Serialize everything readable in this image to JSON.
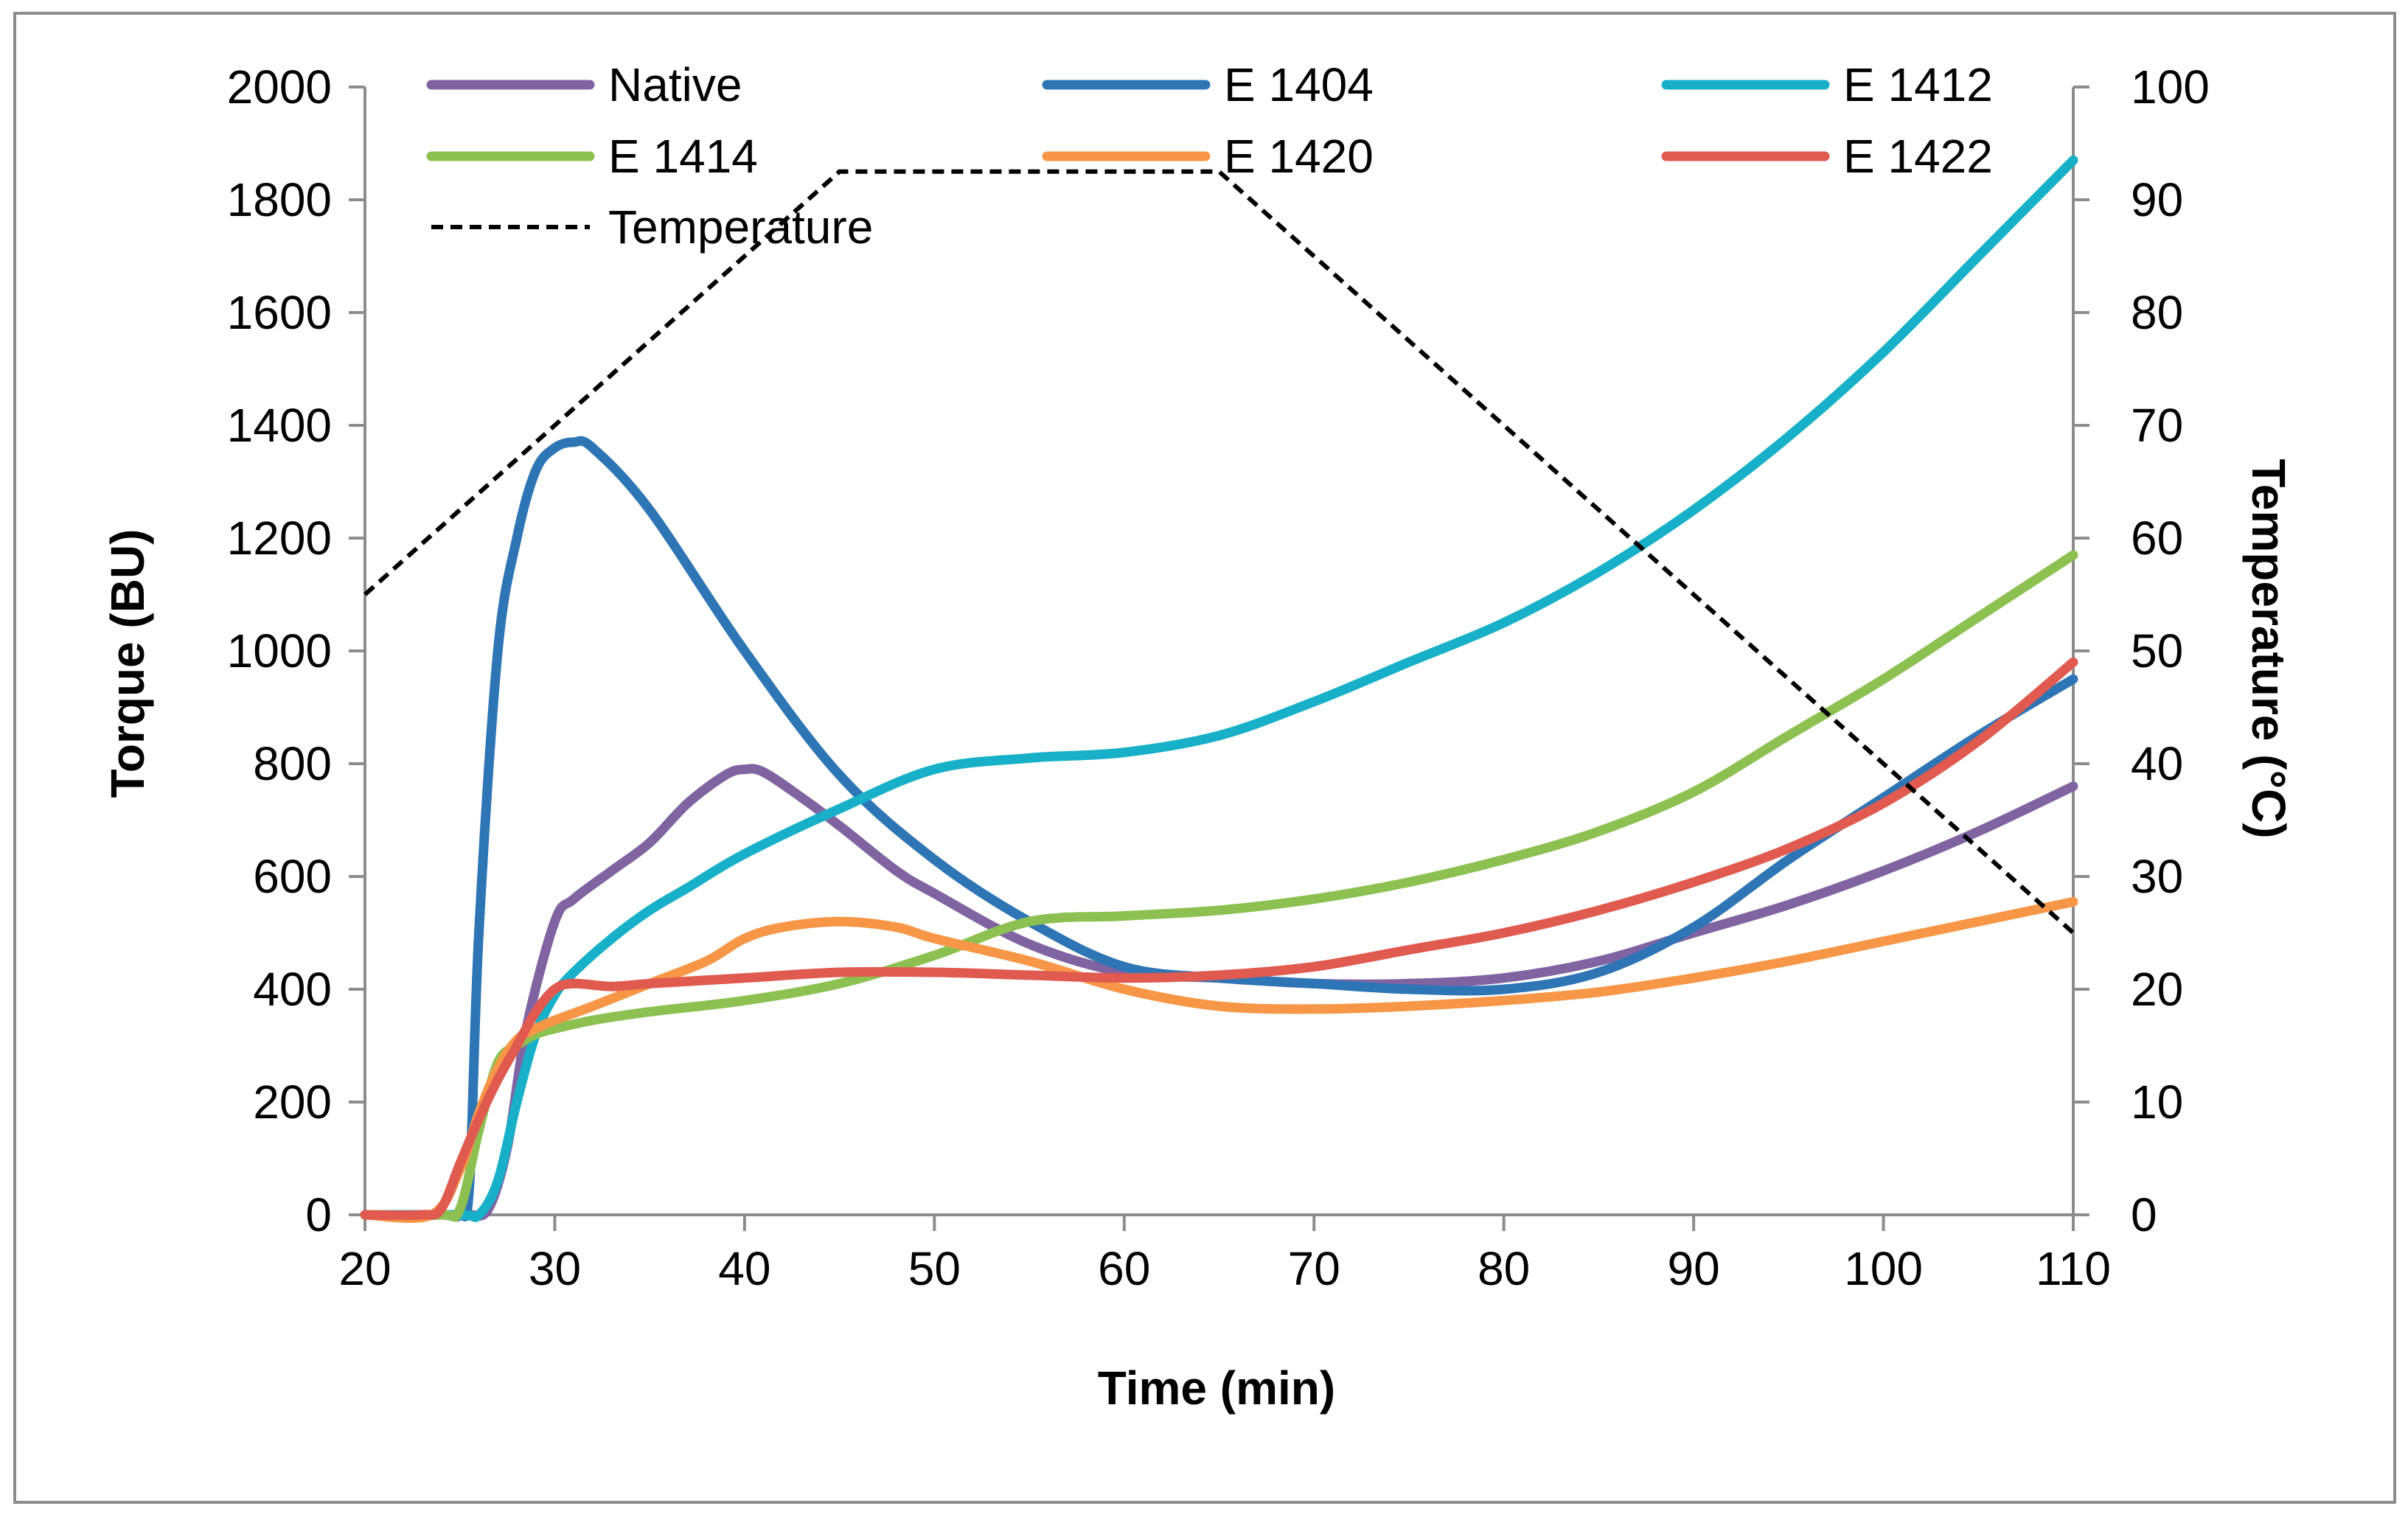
{
  "chart_data": {
    "type": "line",
    "title": "",
    "xlabel": "Time (min)",
    "ylabel": "Torque (BU)",
    "y2label": "Temperature (°C)",
    "xlim": [
      20,
      110
    ],
    "ylim": [
      0,
      2000
    ],
    "y2lim": [
      0,
      100
    ],
    "x_ticks": [
      20,
      30,
      40,
      50,
      60,
      70,
      80,
      90,
      100,
      110
    ],
    "y_ticks": [
      0,
      200,
      400,
      600,
      800,
      1000,
      1200,
      1400,
      1600,
      1800,
      2000
    ],
    "y2_ticks": [
      0,
      10,
      20,
      30,
      40,
      50,
      60,
      70,
      80,
      90,
      100
    ],
    "legend_position": "top",
    "grid": false,
    "series": [
      {
        "name": "Native",
        "color": "#8064A2",
        "axis": "left",
        "style": "solid",
        "x": [
          20,
          23,
          24.5,
          25.5,
          26.5,
          27.5,
          28.5,
          30,
          31,
          33,
          35,
          37,
          39,
          40,
          41,
          43,
          45,
          48,
          50,
          55,
          60,
          65,
          70,
          75,
          80,
          85,
          90,
          95,
          100,
          105,
          110
        ],
        "values": [
          0,
          0,
          0,
          0,
          10,
          120,
          330,
          520,
          560,
          610,
          660,
          730,
          780,
          790,
          785,
          740,
          690,
          610,
          570,
          480,
          430,
          420,
          410,
          410,
          420,
          450,
          500,
          550,
          610,
          680,
          760
        ]
      },
      {
        "name": "E 1404",
        "color": "#2E75B6",
        "axis": "left",
        "style": "solid",
        "x": [
          20,
          24,
          25,
          25.5,
          26,
          27,
          28,
          29,
          30,
          31,
          32,
          35,
          40,
          45,
          50,
          55,
          60,
          65,
          70,
          75,
          80,
          85,
          90,
          95,
          100,
          105,
          110
        ],
        "values": [
          0,
          0,
          0,
          50,
          500,
          1000,
          1200,
          1320,
          1360,
          1370,
          1360,
          1250,
          1000,
          780,
          630,
          520,
          440,
          420,
          410,
          400,
          400,
          430,
          510,
          630,
          740,
          850,
          950
        ]
      },
      {
        "name": "E 1412",
        "color": "#17B0C8",
        "axis": "left",
        "style": "solid",
        "x": [
          20,
          25,
          26,
          27,
          28,
          29,
          30,
          31,
          33,
          35,
          37,
          40,
          45,
          50,
          55,
          60,
          65,
          70,
          75,
          80,
          85,
          90,
          95,
          100,
          105,
          110
        ],
        "values": [
          0,
          0,
          0,
          60,
          200,
          320,
          390,
          430,
          490,
          540,
          580,
          640,
          720,
          790,
          810,
          820,
          850,
          910,
          980,
          1050,
          1140,
          1250,
          1380,
          1530,
          1700,
          1870
        ]
      },
      {
        "name": "E 1414",
        "color": "#8CC152",
        "axis": "left",
        "style": "solid",
        "x": [
          20,
          24,
          25,
          26,
          27,
          28,
          29,
          30,
          32,
          35,
          40,
          45,
          50,
          55,
          60,
          65,
          70,
          75,
          80,
          85,
          90,
          95,
          100,
          105,
          110
        ],
        "values": [
          0,
          0,
          10,
          150,
          270,
          300,
          320,
          330,
          345,
          360,
          380,
          410,
          460,
          520,
          530,
          540,
          560,
          590,
          630,
          680,
          750,
          850,
          950,
          1060,
          1170
        ]
      },
      {
        "name": "E 1420",
        "color": "#F79646",
        "axis": "left",
        "style": "solid",
        "x": [
          20,
          23.5,
          25,
          26,
          27,
          28,
          29,
          30,
          32,
          35,
          38,
          40,
          42,
          45,
          48,
          50,
          55,
          60,
          65,
          70,
          75,
          80,
          85,
          90,
          95,
          100,
          105,
          110
        ],
        "values": [
          0,
          0,
          80,
          180,
          260,
          310,
          330,
          345,
          370,
          410,
          450,
          490,
          510,
          520,
          510,
          490,
          450,
          400,
          370,
          365,
          370,
          380,
          395,
          420,
          450,
          485,
          520,
          555
        ]
      },
      {
        "name": "E 1422",
        "color": "#E05A4F",
        "axis": "left",
        "style": "solid",
        "x": [
          20,
          23,
          24,
          25,
          26,
          27,
          28,
          29,
          30,
          31,
          33,
          35,
          40,
          45,
          50,
          55,
          60,
          65,
          70,
          75,
          80,
          85,
          90,
          95,
          100,
          105,
          110
        ],
        "values": [
          0,
          0,
          10,
          90,
          170,
          240,
          300,
          360,
          400,
          410,
          405,
          410,
          420,
          430,
          430,
          425,
          420,
          425,
          440,
          470,
          500,
          540,
          590,
          650,
          730,
          840,
          980
        ]
      },
      {
        "name": "Temperature",
        "color": "#000000",
        "axis": "right",
        "style": "dashed",
        "x": [
          20,
          45,
          65,
          110
        ],
        "values": [
          55,
          92.5,
          92.5,
          25
        ]
      }
    ]
  }
}
